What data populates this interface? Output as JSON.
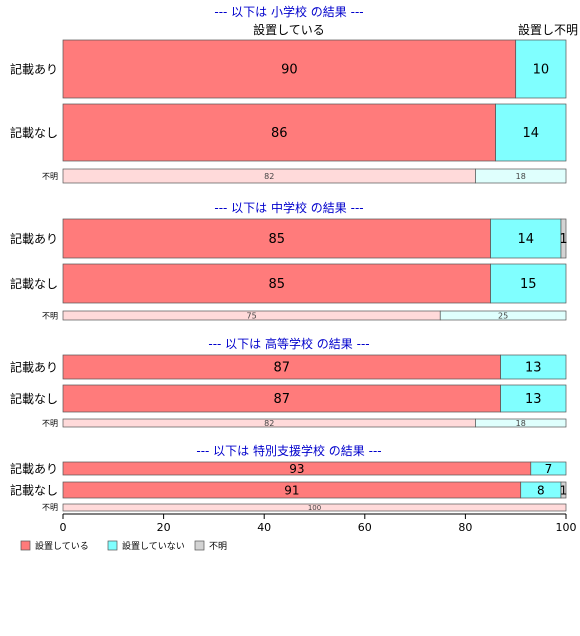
{
  "chart_data": {
    "type": "bar",
    "orientation": "horizontal",
    "stacked": "percent",
    "xlim": [
      0,
      100
    ],
    "xticks": [
      0,
      20,
      40,
      60,
      80,
      100
    ],
    "colors": {
      "設置している": "#ff7b7b",
      "設置していない": "#80ffff",
      "不明": "#d3d3d3",
      "設置している_light": "#ffdada",
      "設置していない_light": "#dffffd",
      "section_title": "#0000cc"
    },
    "legend": {
      "placement": "bottom-left",
      "entries": [
        "設置している",
        "設置していない",
        "不明"
      ]
    },
    "column_headers": [
      "設置している",
      "設置し不明"
    ],
    "panels": [
      {
        "title": "--- 以下は 小学校 の結果 ---",
        "rows": [
          {
            "label": "記載あり",
            "values": [
              90,
              10,
              0
            ],
            "value_labels": [
              "90",
              "10",
              ""
            ]
          },
          {
            "label": "記載なし",
            "values": [
              86,
              14,
              0
            ],
            "value_labels": [
              "86",
              "14",
              ""
            ]
          },
          {
            "label": "不明",
            "minor": true,
            "values": [
              82,
              18,
              0
            ],
            "value_labels": [
              "82",
              "18",
              ""
            ]
          }
        ]
      },
      {
        "title": "--- 以下は 中学校 の結果 ---",
        "rows": [
          {
            "label": "記載あり",
            "values": [
              85,
              14,
              1
            ],
            "value_labels": [
              "85",
              "14",
              "1"
            ]
          },
          {
            "label": "記載なし",
            "values": [
              85,
              15,
              0
            ],
            "value_labels": [
              "85",
              "15",
              ""
            ]
          },
          {
            "label": "不明",
            "minor": true,
            "values": [
              75,
              25,
              0
            ],
            "value_labels": [
              "75",
              "25",
              ""
            ]
          }
        ]
      },
      {
        "title": "--- 以下は 高等学校 の結果 ---",
        "rows": [
          {
            "label": "記載あり",
            "values": [
              87,
              13,
              0
            ],
            "value_labels": [
              "87",
              "13",
              ""
            ]
          },
          {
            "label": "記載なし",
            "values": [
              87,
              13,
              0
            ],
            "value_labels": [
              "87",
              "13",
              ""
            ]
          },
          {
            "label": "不明",
            "minor": true,
            "values": [
              82,
              18,
              0
            ],
            "value_labels": [
              "82",
              "18",
              ""
            ]
          }
        ]
      },
      {
        "title": "--- 以下は 特別支援学校 の結果 ---",
        "rows": [
          {
            "label": "記載あり",
            "values": [
              93,
              7,
              0
            ],
            "value_labels": [
              "93",
              "7",
              ""
            ]
          },
          {
            "label": "記載なし",
            "values": [
              91,
              8,
              1
            ],
            "value_labels": [
              "91",
              "8",
              "1"
            ]
          },
          {
            "label": "不明",
            "minor": true,
            "values": [
              100,
              0,
              0
            ],
            "value_labels": [
              "100",
              "",
              ""
            ]
          }
        ]
      }
    ]
  }
}
